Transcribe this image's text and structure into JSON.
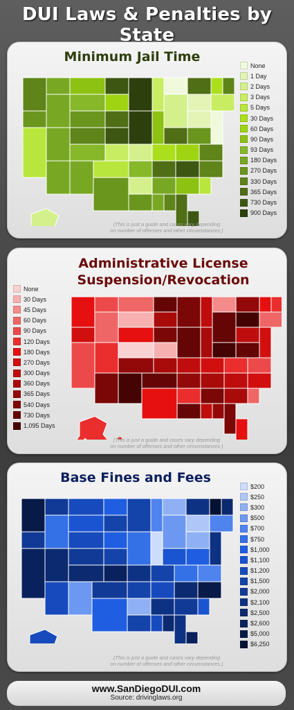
{
  "title": "DUI Laws & Penalties by State",
  "panels": [
    {
      "title": "Minimum Jail Time",
      "note_line1": "(This is just a guide and cases vary depending",
      "note_line2": "on number of offenses and other circumstances.)",
      "legend": [
        "None",
        "1 Day",
        "2 Days",
        "3 Days",
        "5 Days",
        "30 Days",
        "60 Days",
        "90 Days",
        "93 Days",
        "180 Days",
        "270 Days",
        "330 Days",
        "365 Days",
        "730 Days",
        "900 Days"
      ],
      "colors": [
        "#f1f9dc",
        "#e3f4b6",
        "#d4f08c",
        "#c8ed62",
        "#b9e63d",
        "#abdf1d",
        "#9fd412",
        "#8dc213",
        "#86b829",
        "#78a823",
        "#6b961e",
        "#5e841a",
        "#4f6e16",
        "#3d5712",
        "#2c3f0d"
      ]
    },
    {
      "title_line1": "Administrative License",
      "title_line2": "Suspension/Revocation",
      "note_line1": "(This is just a guide and cases vary depending",
      "note_line2": "on number of offenses and other circumstances.)",
      "legend": [
        "None",
        "30 Days",
        "45 Days",
        "60 Days",
        "90 Days",
        "120 Days",
        "180 Days",
        "270 Days",
        "300 Days",
        "360 Days",
        "365 Days",
        "540 Days",
        "730 Days",
        "1,095 Days"
      ],
      "colors": [
        "#fad1d1",
        "#f7b0b0",
        "#f38b8b",
        "#ef6666",
        "#ec4a4a",
        "#ea2e2e",
        "#e61010",
        "#d10f0f",
        "#bf0d0d",
        "#a90b0b",
        "#930909",
        "#7b0707",
        "#650505",
        "#460303"
      ]
    },
    {
      "title": "Base Fines and Fees",
      "note_line1": "(This is just a guide and cases vary depending",
      "note_line2": "on number of offenses and other circumstances.)",
      "legend": [
        "$200",
        "$250",
        "$300",
        "$500",
        "$700",
        "$750",
        "$1,000",
        "$1,100",
        "$1,200",
        "$1,500",
        "$2,000",
        "$2,100",
        "$2,500",
        "$2,600",
        "$5,000",
        "$6,250"
      ],
      "colors": [
        "#cddcfb",
        "#afc7f8",
        "#8fb0f5",
        "#6d98f1",
        "#4f83ee",
        "#3470e6",
        "#1f5ee0",
        "#1a54d0",
        "#174bbd",
        "#1443aa",
        "#113a96",
        "#0e3283",
        "#0c2a70",
        "#09225d",
        "#071a48",
        "#051233"
      ]
    }
  ],
  "chart_data": [
    {
      "type": "map",
      "title": "Minimum Jail Time",
      "legend": [
        "None",
        "1 Day",
        "2 Days",
        "3 Days",
        "5 Days",
        "30 Days",
        "60 Days",
        "90 Days",
        "93 Days",
        "180 Days",
        "270 Days",
        "330 Days",
        "365 Days",
        "730 Days",
        "900 Days"
      ]
    },
    {
      "type": "map",
      "title": "Administrative License Suspension/Revocation",
      "legend": [
        "None",
        "30 Days",
        "45 Days",
        "60 Days",
        "90 Days",
        "120 Days",
        "180 Days",
        "270 Days",
        "300 Days",
        "360 Days",
        "365 Days",
        "540 Days",
        "730 Days",
        "1,095 Days"
      ]
    },
    {
      "type": "map",
      "title": "Base Fines and Fees",
      "legend": [
        "$200",
        "$250",
        "$300",
        "$500",
        "$700",
        "$750",
        "$1,000",
        "$1,100",
        "$1,200",
        "$1,500",
        "$2,000",
        "$2,100",
        "$2,500",
        "$2,600",
        "$5,000",
        "$6,250"
      ]
    }
  ],
  "footer": {
    "site": "www.SanDiegoDUI.com",
    "source": "Source: drivinglaws.org"
  }
}
